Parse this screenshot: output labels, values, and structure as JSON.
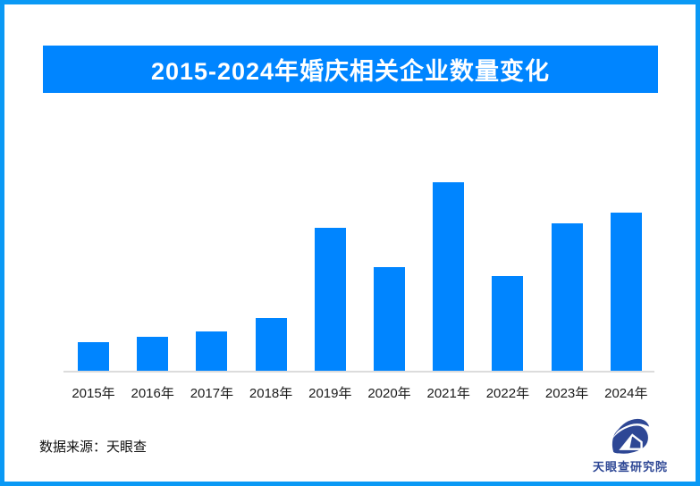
{
  "page": {
    "border_color": "#0a99f5",
    "background_color": "#ffffff"
  },
  "header": {
    "title": "2015-2024年婚庆相关企业数量变化",
    "banner_color": "#0085ff",
    "title_text_color": "#ffffff"
  },
  "chart_data": {
    "type": "bar",
    "title": "2015-2024年婚庆相关企业数量变化",
    "categories": [
      "2015年",
      "2016年",
      "2017年",
      "2018年",
      "2019年",
      "2020年",
      "2021年",
      "2022年",
      "2023年",
      "2024年"
    ],
    "values": [
      15,
      18,
      21,
      28,
      76,
      55,
      100,
      50,
      78,
      84
    ],
    "value_scale": "relative, peak year 2021 = 100 (no numeric y-axis labels shown in source)",
    "xlabel": "",
    "ylabel": "",
    "ylim": [
      0,
      100
    ],
    "grid": false,
    "legend": false,
    "bar_color": "#0085ff",
    "axis_line_color": "#dcdcdc",
    "tick_label_color": "#1a1a1a"
  },
  "footer": {
    "source_label": "数据来源：天眼查",
    "logo_text": "天眼查研究院",
    "logo_color": "#2e4795",
    "logo_icon": "tianyancha-eye-logo"
  }
}
